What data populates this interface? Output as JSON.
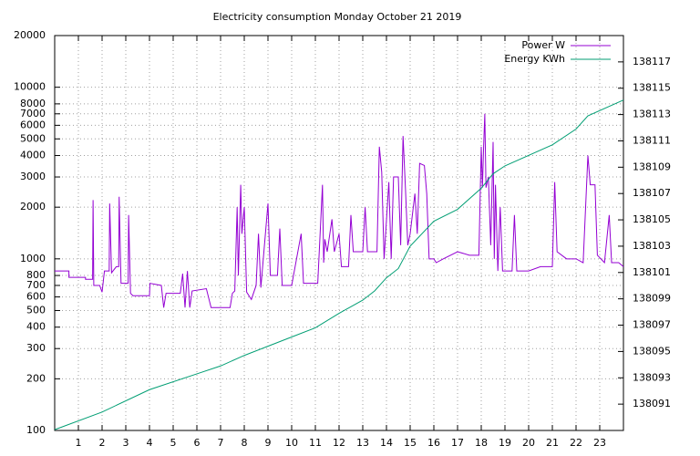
{
  "chart_data": {
    "type": "line",
    "title": "Electricity consumption Monday October 21 2019",
    "xlim": [
      0,
      24
    ],
    "xticks": [
      1,
      2,
      3,
      4,
      5,
      6,
      7,
      8,
      9,
      10,
      11,
      12,
      13,
      14,
      15,
      16,
      17,
      18,
      19,
      20,
      21,
      22,
      23
    ],
    "ylim": [
      100,
      20000
    ],
    "log_y": true,
    "yticks": [
      100,
      200,
      300,
      400,
      500,
      600,
      700,
      800,
      1000,
      2000,
      3000,
      4000,
      5000,
      6000,
      7000,
      8000,
      10000,
      20000
    ],
    "y2lim": [
      138089,
      138119
    ],
    "y2ticks": [
      138091,
      138093,
      138095,
      138097,
      138099,
      138101,
      138103,
      138105,
      138107,
      138109,
      138111,
      138113,
      138115,
      138117
    ],
    "grid": true,
    "legend": "top-right",
    "series": [
      {
        "name": "Power W",
        "color": "#9400d3",
        "x": [
          0,
          0.6,
          0.6,
          1.3,
          1.3,
          1.6,
          1.62,
          1.65,
          1.9,
          2.0,
          2.1,
          2.3,
          2.32,
          2.4,
          2.6,
          2.7,
          2.72,
          2.8,
          3.0,
          3.1,
          3.12,
          3.2,
          3.3,
          4.0,
          4.02,
          4.5,
          4.6,
          4.7,
          5.3,
          5.4,
          5.5,
          5.6,
          5.7,
          5.8,
          6.4,
          6.6,
          7.4,
          7.5,
          7.6,
          7.7,
          7.75,
          7.85,
          7.9,
          8.0,
          8.1,
          8.3,
          8.5,
          8.6,
          8.7,
          9.0,
          9.1,
          9.4,
          9.5,
          9.6,
          10.0,
          10.4,
          10.5,
          11.1,
          11.3,
          11.35,
          11.4,
          11.5,
          11.7,
          11.8,
          12.0,
          12.1,
          12.4,
          12.5,
          12.6,
          13.0,
          13.1,
          13.2,
          13.6,
          13.7,
          13.8,
          13.9,
          14.1,
          14.2,
          14.3,
          14.5,
          14.6,
          14.7,
          14.8,
          14.9,
          15.0,
          15.2,
          15.3,
          15.4,
          15.6,
          15.7,
          15.8,
          16.0,
          16.1,
          16.4,
          17.0,
          17.5,
          17.9,
          18.0,
          18.05,
          18.1,
          18.15,
          18.2,
          18.3,
          18.4,
          18.5,
          18.55,
          18.6,
          18.7,
          18.8,
          18.9,
          19.3,
          19.4,
          19.5,
          20.0,
          20.5,
          21.0,
          21.1,
          21.2,
          21.6,
          22.0,
          22.3,
          22.5,
          22.6,
          22.8,
          22.9,
          23.2,
          23.4,
          23.5,
          23.8,
          24
        ],
        "values": [
          850,
          850,
          780,
          780,
          760,
          760,
          2200,
          700,
          700,
          640,
          850,
          850,
          2100,
          830,
          900,
          900,
          2300,
          720,
          720,
          720,
          1800,
          630,
          610,
          610,
          720,
          700,
          520,
          630,
          630,
          820,
          520,
          850,
          520,
          650,
          670,
          520,
          520,
          630,
          650,
          2000,
          800,
          2700,
          1400,
          2000,
          640,
          580,
          700,
          1400,
          680,
          2100,
          800,
          800,
          1500,
          700,
          700,
          1400,
          720,
          720,
          2700,
          950,
          1300,
          1100,
          1700,
          1100,
          1400,
          900,
          900,
          1800,
          1100,
          1100,
          2000,
          1100,
          1100,
          4500,
          3200,
          1000,
          2800,
          1000,
          3000,
          3000,
          1200,
          5200,
          2600,
          1200,
          1400,
          2400,
          1400,
          3600,
          3500,
          2400,
          1000,
          1000,
          950,
          1000,
          1100,
          1050,
          1050,
          4500,
          2600,
          4500,
          7000,
          2600,
          3000,
          1200,
          4800,
          1000,
          2700,
          850,
          2000,
          850,
          850,
          1800,
          850,
          850,
          900,
          900,
          2800,
          1100,
          1000,
          1000,
          950,
          4000,
          2700,
          2700,
          1050,
          950,
          1800,
          950,
          950,
          900
        ]
      },
      {
        "name": "Energy KWh",
        "color": "#009e73",
        "axis": "y2",
        "x": [
          0,
          2,
          4,
          6,
          7,
          8,
          9,
          10,
          11,
          12,
          13,
          13.5,
          14,
          14.5,
          15,
          16,
          17,
          18,
          18.5,
          19,
          21,
          22,
          22.5,
          24
        ],
        "values": [
          138089.06,
          138090.4,
          138092.1,
          138093.3,
          138093.9,
          138094.7,
          138095.4,
          138096.1,
          138096.8,
          138097.9,
          138098.9,
          138099.6,
          138100.6,
          138101.3,
          138103.0,
          138104.9,
          138105.8,
          138107.4,
          138108.5,
          138109.1,
          138110.7,
          138111.9,
          138112.9,
          138114.1
        ]
      }
    ]
  }
}
